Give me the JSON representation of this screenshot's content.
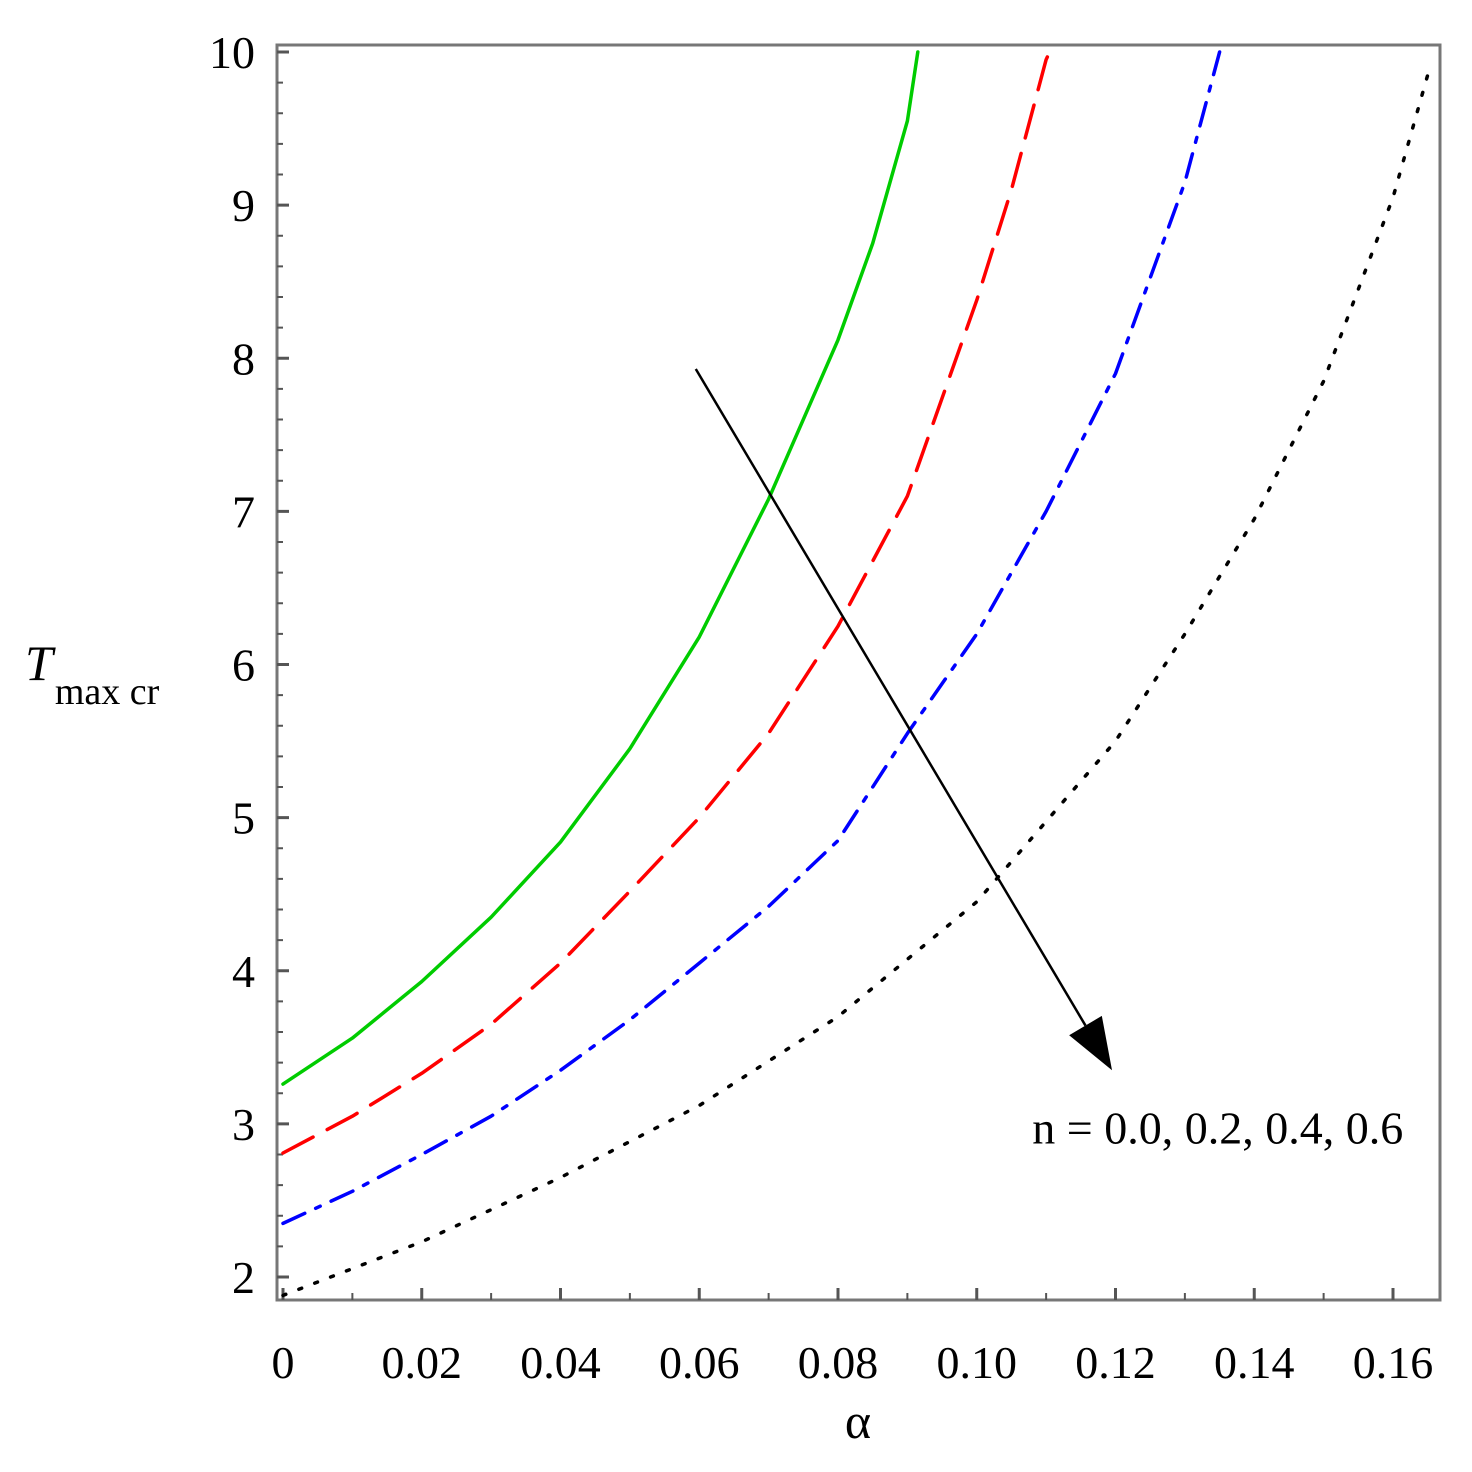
{
  "chart_data": {
    "type": "line",
    "title": "",
    "xlabel": "α",
    "ylabel": {
      "main": "T",
      "subscript": "max cr"
    },
    "xlim": [
      0,
      0.166
    ],
    "ylim": [
      1.85,
      10
    ],
    "x_ticks": [
      {
        "value": 0,
        "label": "0"
      },
      {
        "value": 0.02,
        "label": "0.02"
      },
      {
        "value": 0.04,
        "label": "0.04"
      },
      {
        "value": 0.06,
        "label": "0.06"
      },
      {
        "value": 0.08,
        "label": "0.08"
      },
      {
        "value": 0.1,
        "label": "0.10"
      },
      {
        "value": 0.12,
        "label": "0.12"
      },
      {
        "value": 0.14,
        "label": "0.14"
      },
      {
        "value": 0.16,
        "label": "0.16"
      }
    ],
    "y_ticks": [
      {
        "value": 2,
        "label": "2"
      },
      {
        "value": 3,
        "label": "3"
      },
      {
        "value": 4,
        "label": "4"
      },
      {
        "value": 5,
        "label": "5"
      },
      {
        "value": 6,
        "label": "6"
      },
      {
        "value": 7,
        "label": "7"
      },
      {
        "value": 8,
        "label": "8"
      },
      {
        "value": 9,
        "label": "9"
      },
      {
        "value": 10,
        "label": "10"
      }
    ],
    "grid": false,
    "series": [
      {
        "color": "#00cc00",
        "dash": "solid",
        "points": [
          [
            0,
            3.26
          ],
          [
            0.01,
            3.56
          ],
          [
            0.02,
            3.93
          ],
          [
            0.03,
            4.35
          ],
          [
            0.04,
            4.84
          ],
          [
            0.05,
            5.45
          ],
          [
            0.06,
            6.18
          ],
          [
            0.07,
            7.08
          ],
          [
            0.08,
            8.12
          ],
          [
            0.085,
            8.75
          ],
          [
            0.09,
            9.55
          ],
          [
            0.0915,
            10.0
          ]
        ]
      },
      {
        "color": "#ff0000",
        "dash": "dashed",
        "points": [
          [
            0,
            2.81
          ],
          [
            0.01,
            3.05
          ],
          [
            0.02,
            3.33
          ],
          [
            0.03,
            3.65
          ],
          [
            0.04,
            4.05
          ],
          [
            0.05,
            4.52
          ],
          [
            0.06,
            5.0
          ],
          [
            0.07,
            5.55
          ],
          [
            0.08,
            6.25
          ],
          [
            0.09,
            7.1
          ],
          [
            0.1,
            8.38
          ],
          [
            0.105,
            9.1
          ],
          [
            0.11,
            9.95
          ],
          [
            0.1105,
            10.0
          ]
        ]
      },
      {
        "color": "#0000ff",
        "dash": "dashdot",
        "points": [
          [
            0,
            2.35
          ],
          [
            0.01,
            2.56
          ],
          [
            0.02,
            2.8
          ],
          [
            0.03,
            3.05
          ],
          [
            0.04,
            3.35
          ],
          [
            0.05,
            3.68
          ],
          [
            0.06,
            4.05
          ],
          [
            0.07,
            4.42
          ],
          [
            0.08,
            4.85
          ],
          [
            0.09,
            5.55
          ],
          [
            0.1,
            6.2
          ],
          [
            0.11,
            7.0
          ],
          [
            0.12,
            7.9
          ],
          [
            0.13,
            9.15
          ],
          [
            0.135,
            10.0
          ]
        ]
      },
      {
        "color": "#000000",
        "dash": "dotted",
        "points": [
          [
            0,
            1.88
          ],
          [
            0.02,
            2.23
          ],
          [
            0.04,
            2.65
          ],
          [
            0.06,
            3.12
          ],
          [
            0.08,
            3.7
          ],
          [
            0.1,
            4.45
          ],
          [
            0.12,
            5.5
          ],
          [
            0.13,
            6.2
          ],
          [
            0.14,
            6.95
          ],
          [
            0.15,
            7.85
          ],
          [
            0.16,
            9.05
          ],
          [
            0.165,
            9.85
          ]
        ]
      }
    ],
    "annotations": [
      {
        "text": "n = 0.0, 0.2, 0.4, 0.6",
        "x": 0.108,
        "y": 2.95
      }
    ],
    "arrow": {
      "from": [
        0.0595,
        7.93
      ],
      "to": [
        0.1195,
        3.35
      ]
    }
  }
}
